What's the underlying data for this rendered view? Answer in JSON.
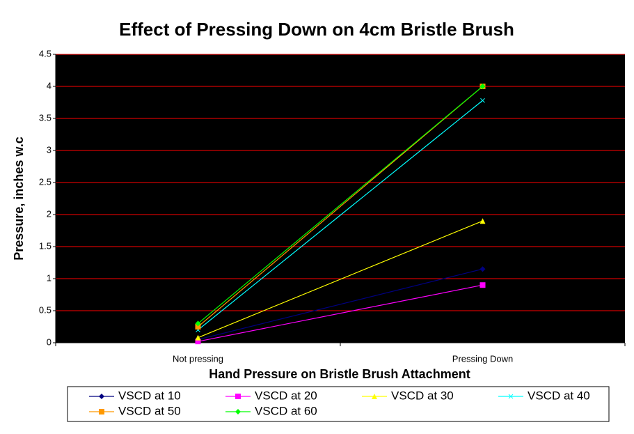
{
  "chart_data": {
    "type": "line",
    "title": "Effect of Pressing Down on 4cm Bristle Brush",
    "x_label": "Hand Pressure on Bristle Brush Attachment",
    "y_label": "Pressure, inches w.c",
    "categories": [
      "Not pressing",
      "Pressing Down"
    ],
    "series": [
      {
        "name": "VSCD at 10",
        "color": "#000080",
        "marker": "diamond",
        "values": [
          0.05,
          1.15
        ]
      },
      {
        "name": "VSCD at 20",
        "color": "#ff00ff",
        "marker": "square",
        "values": [
          0.02,
          0.9
        ]
      },
      {
        "name": "VSCD at 30",
        "color": "#ffff00",
        "marker": "triangle",
        "values": [
          0.08,
          1.9
        ]
      },
      {
        "name": "VSCD at 40",
        "color": "#00ffff",
        "marker": "x",
        "values": [
          0.2,
          3.78
        ]
      },
      {
        "name": "VSCD at 50",
        "color": "#ff9900",
        "marker": "square",
        "values": [
          0.25,
          4.0
        ]
      },
      {
        "name": "VSCD at 60",
        "color": "#00ff00",
        "marker": "diamond",
        "values": [
          0.3,
          4.0
        ]
      }
    ],
    "ylim": [
      0,
      4.5
    ],
    "yticks": [
      0,
      0.5,
      1,
      1.5,
      2,
      2.5,
      3,
      3.5,
      4,
      4.5
    ],
    "grid": true,
    "grid_color": "#ff0000",
    "plot_background": "#000000",
    "legend": "bottom"
  }
}
